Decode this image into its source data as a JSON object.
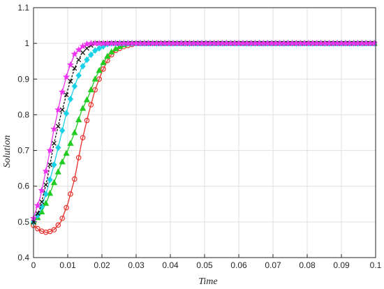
{
  "chart_data": {
    "type": "line",
    "title": "",
    "xlabel": "Time",
    "ylabel": "Solution",
    "xlim": [
      0,
      0.1
    ],
    "ylim": [
      0.4,
      1.1
    ],
    "xticks": [
      "0",
      "0.01",
      "0.02",
      "0.03",
      "0.04",
      "0.05",
      "0.06",
      "0.07",
      "0.08",
      "0.09",
      "0.1"
    ],
    "yticks": [
      "0.4",
      "0.5",
      "0.6",
      "0.7",
      "0.8",
      "0.9",
      "1",
      "1.1"
    ],
    "grid": true,
    "legend": "none",
    "x": [
      0,
      0.002,
      0.004,
      0.006,
      0.008,
      0.01,
      0.012,
      0.014,
      0.016,
      0.018,
      0.02,
      0.022,
      0.024,
      0.026,
      0.028,
      0.03,
      0.035,
      0.04,
      0.05,
      0.06,
      0.07,
      0.08,
      0.09,
      0.1
    ],
    "series": [
      {
        "marker": "circle",
        "color": "#e8302b",
        "values": [
          0.49,
          0.475,
          0.47,
          0.478,
          0.5,
          0.55,
          0.62,
          0.72,
          0.8,
          0.87,
          0.92,
          0.96,
          0.98,
          0.99,
          0.995,
          1.0,
          1.0,
          1.0,
          1.0,
          1.0,
          1.0,
          1.0,
          1.0,
          1.0
        ]
      },
      {
        "marker": "triangle",
        "color": "#22cc22",
        "values": [
          0.5,
          0.52,
          0.56,
          0.61,
          0.66,
          0.7,
          0.75,
          0.81,
          0.85,
          0.9,
          0.94,
          0.97,
          0.985,
          0.995,
          1.0,
          1.0,
          1.0,
          1.0,
          1.0,
          1.0,
          1.0,
          1.0,
          1.0,
          1.0
        ]
      },
      {
        "marker": "diamond",
        "color": "#19d2e8",
        "values": [
          0.5,
          0.53,
          0.59,
          0.66,
          0.74,
          0.82,
          0.88,
          0.93,
          0.96,
          0.98,
          0.99,
          1.0,
          1.0,
          1.0,
          1.0,
          1.0,
          1.0,
          1.0,
          1.0,
          1.0,
          1.0,
          1.0,
          1.0,
          1.0
        ]
      },
      {
        "marker": "x",
        "color": "#111111",
        "values": [
          0.5,
          0.54,
          0.62,
          0.72,
          0.8,
          0.87,
          0.93,
          0.97,
          0.99,
          1.0,
          1.0,
          1.0,
          1.0,
          1.0,
          1.0,
          1.0,
          1.0,
          1.0,
          1.0,
          1.0,
          1.0,
          1.0,
          1.0,
          1.0
        ]
      },
      {
        "marker": "star",
        "color": "#ee33ee",
        "values": [
          0.51,
          0.57,
          0.66,
          0.76,
          0.85,
          0.92,
          0.97,
          0.99,
          1.0,
          1.0,
          1.0,
          1.0,
          1.0,
          1.0,
          1.0,
          1.0,
          1.0,
          1.0,
          1.0,
          1.0,
          1.0,
          1.0,
          1.0,
          1.0
        ]
      }
    ]
  }
}
